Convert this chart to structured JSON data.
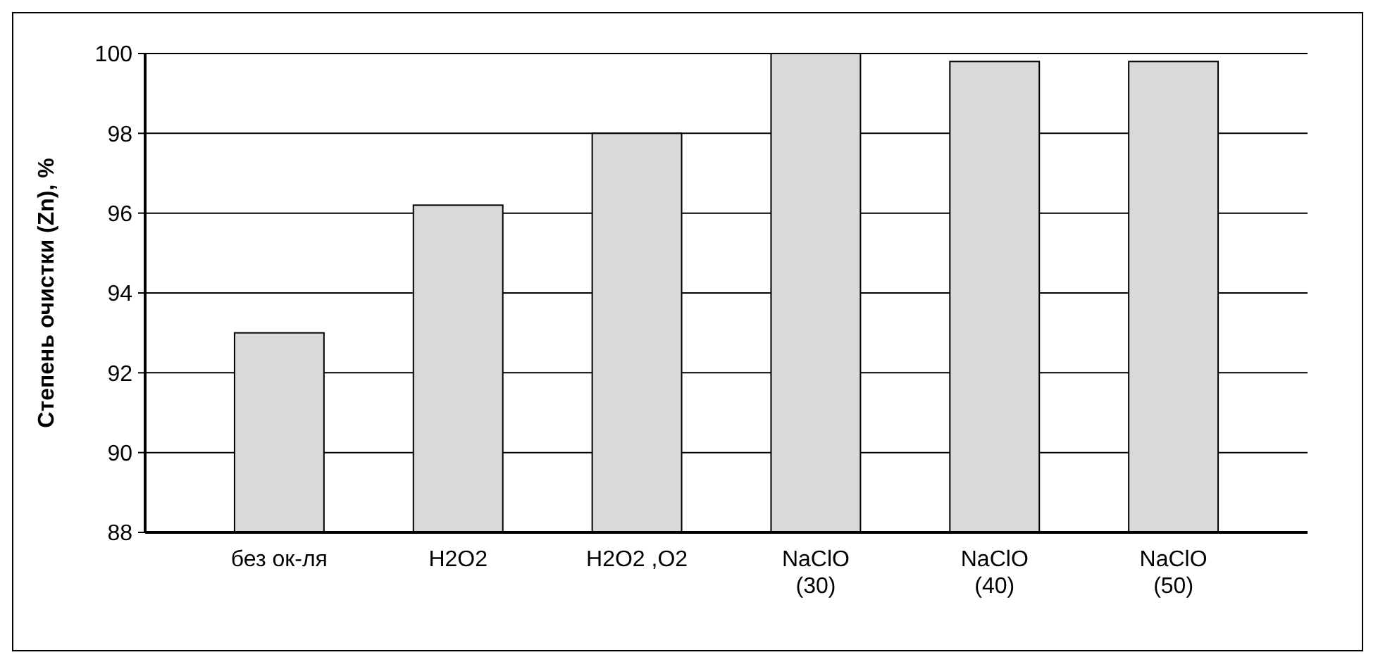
{
  "chart_data": {
    "type": "bar",
    "ylabel": "Степень очистки (Zn), %",
    "categories": [
      "без ок-ля",
      "H2O2",
      "H2O2 ,O2",
      "NaClO\n(30)",
      "NaClO\n(40)",
      "NaClO\n(50)"
    ],
    "values": [
      93.0,
      96.2,
      98.0,
      100.0,
      99.8,
      99.8
    ],
    "color": "#d9d9d9",
    "ylim": [
      88,
      100
    ],
    "yticks": [
      88,
      90,
      92,
      94,
      96,
      98,
      100
    ],
    "grid": "y"
  }
}
